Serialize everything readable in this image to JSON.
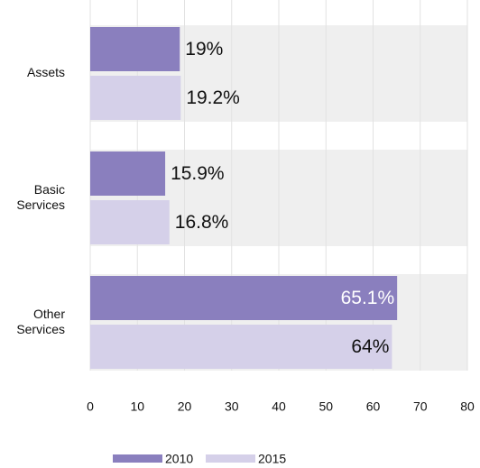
{
  "chart_data": {
    "type": "hbar",
    "categories": [
      "Assets",
      "Basic Services",
      "Other Services"
    ],
    "series": [
      {
        "name": "2010",
        "color": "#8a7fbe",
        "values": [
          19,
          15.9,
          65.1
        ],
        "value_labels": [
          "19%",
          "15.9%",
          "65.1%"
        ]
      },
      {
        "name": "2015",
        "color": "#d5d0e9",
        "values": [
          19.2,
          16.8,
          64
        ],
        "value_labels": [
          "19.2%",
          "16.8%",
          "64%"
        ]
      }
    ],
    "xlim": [
      0,
      80
    ],
    "xticks": [
      0,
      10,
      20,
      30,
      40,
      50,
      60,
      70,
      80
    ],
    "grid": true,
    "legend": "bottom"
  }
}
